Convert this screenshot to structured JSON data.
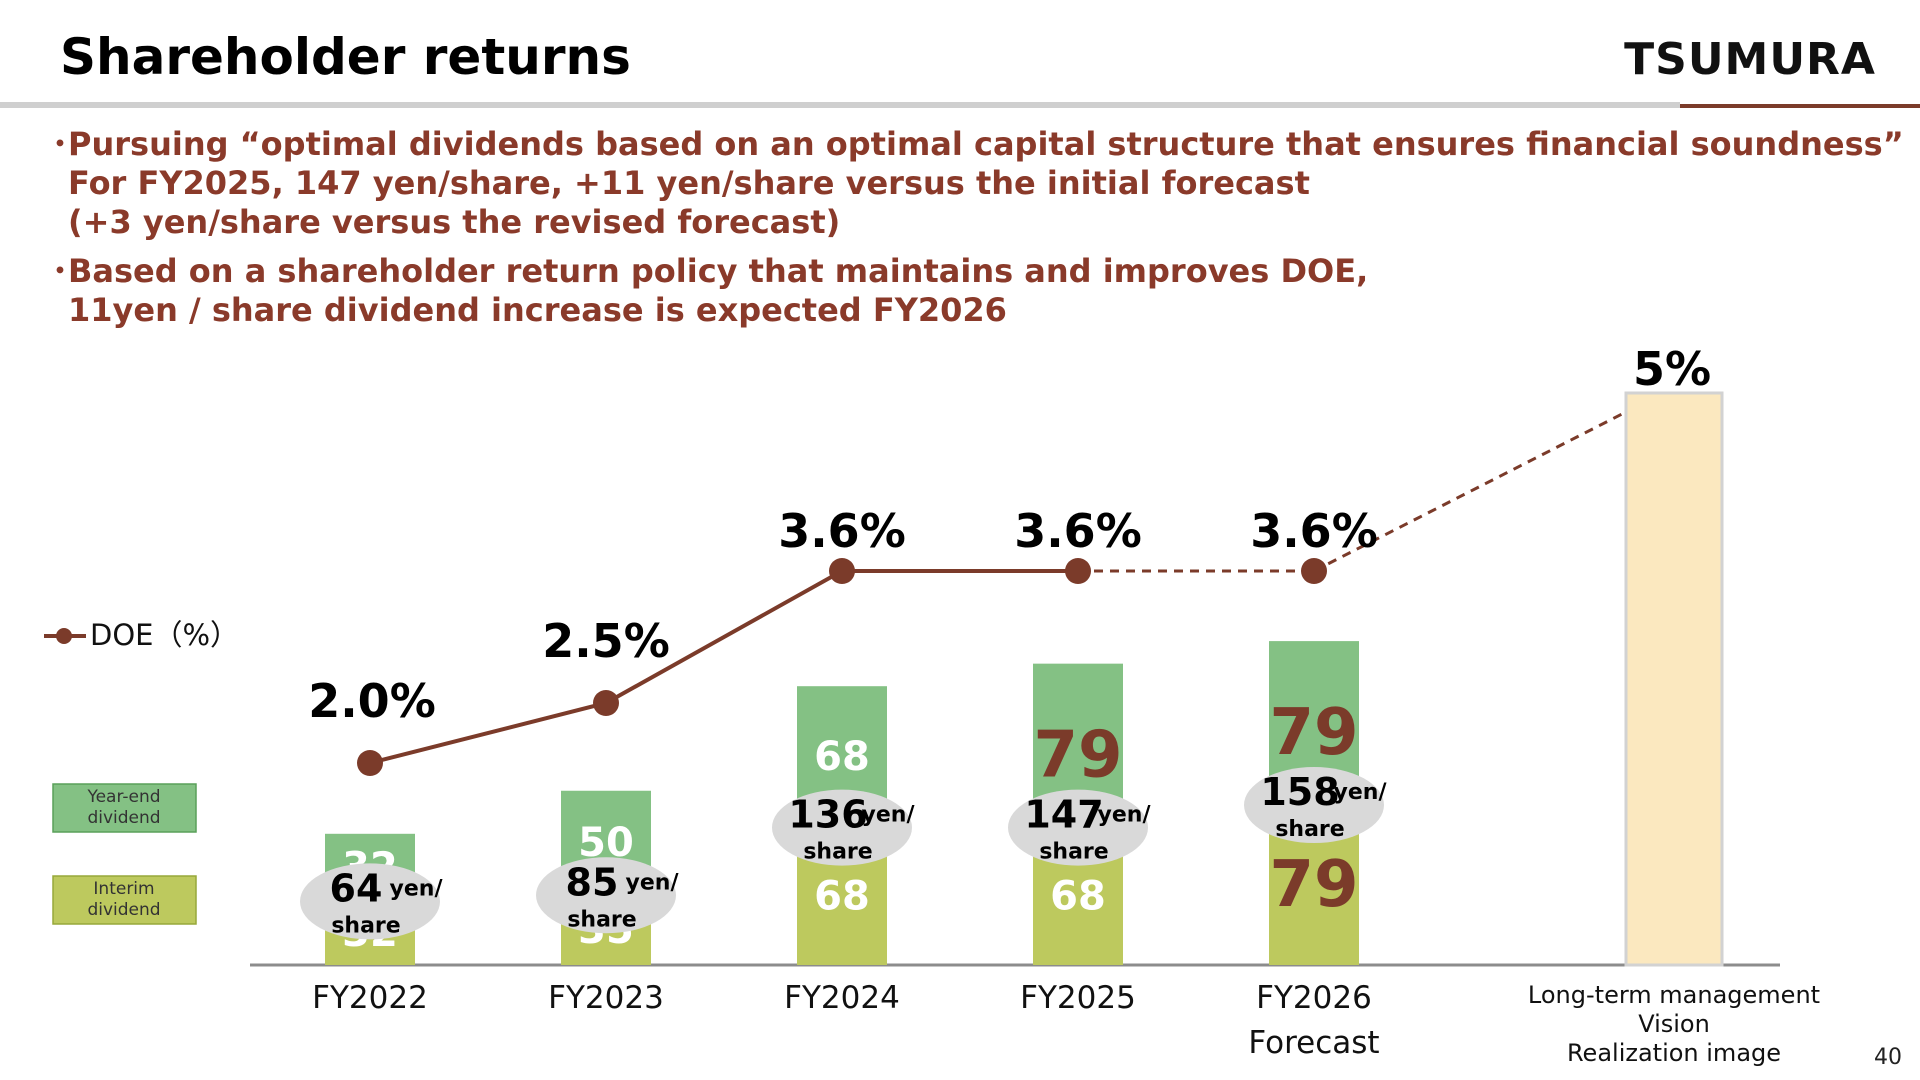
{
  "header": {
    "title": "Shareholder returns",
    "logo": "TSUMURA",
    "page_number": "40"
  },
  "bullets": [
    {
      "marker": "・",
      "lines": [
        "Pursuing “optimal dividends based on an optimal capital structure that ensures financial soundness”",
        "For FY2025, 147 yen/share, +11 yen/share versus the initial forecast",
        "(+3 yen/share versus the revised forecast)"
      ]
    },
    {
      "marker": "・",
      "lines": [
        "Based on a shareholder return policy that maintains and improves DOE,",
        "11yen / share dividend increase is expected FY2026"
      ]
    }
  ],
  "colors": {
    "year_end": "#84c184",
    "interim": "#bdc95e",
    "doe_line": "#7b3b2a",
    "highlight_text": "#7b3b2a",
    "target_bar": "#fbe8bf",
    "bubble": "#d9d9d9"
  },
  "chart_data": {
    "type": "bar",
    "stacked": true,
    "categories": [
      "FY2022",
      "FY2023",
      "FY2024",
      "FY2025",
      "FY2026"
    ],
    "category_sublabels": [
      "",
      "",
      "",
      "",
      "Forecast"
    ],
    "series": [
      {
        "name": "Interim dividend",
        "values": [
          32,
          35,
          68,
          68,
          79
        ]
      },
      {
        "name": "Year-end dividend",
        "values": [
          32,
          50,
          68,
          79,
          79
        ]
      }
    ],
    "totals": [
      64,
      85,
      136,
      147,
      158
    ],
    "total_unit_line1": "yen/",
    "total_unit_line2": "share",
    "highlighted_values": [
      "FY2025 Year-end",
      "FY2026 Interim",
      "FY2026 Year-end"
    ],
    "doe_series": {
      "name": "DOE（%）",
      "values": [
        2.0,
        2.5,
        3.6,
        3.6,
        3.6
      ],
      "labels": [
        "2.0%",
        "2.5%",
        "3.6%",
        "3.6%",
        "3.6%"
      ]
    },
    "target": {
      "label_lines": [
        "Long-term management",
        "Vision",
        "Realization image"
      ],
      "doe_label": "5%",
      "doe_value": 5
    },
    "legend": {
      "year_end": [
        "Year-end",
        "dividend"
      ],
      "interim": [
        "Interim",
        "dividend"
      ],
      "doe": "DOE（%）"
    },
    "legend_position": "left"
  }
}
